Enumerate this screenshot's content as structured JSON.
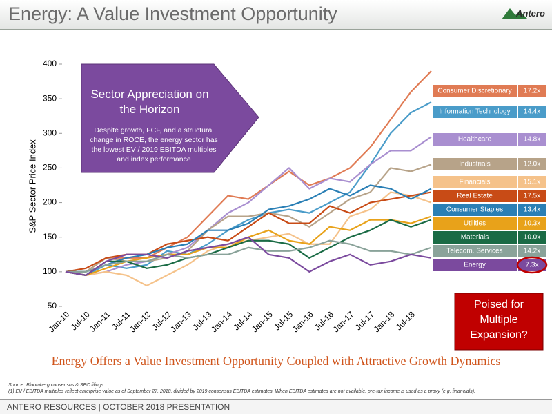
{
  "header": {
    "title": "Energy: A Value Investment Opportunity",
    "logo": "Antero"
  },
  "callout": {
    "title": "Sector Appreciation on the Horizon",
    "body": "Despite growth, FCF, and a structural change in ROCE, the energy sector has the lowest EV / 2019 EBITDA multiples and index performance"
  },
  "question": "Poised for Multiple Expansion?",
  "subtitle": "Energy Offers a Value Investment Opportunity Coupled with Attractive Growth Dynamics",
  "notes": [
    "Source: Bloomberg consensus & SEC filings.",
    "(1)     EV / EBITDA multiples reflect enterprise value as of September 27, 2018, divided by 2019 consensus EBITDA estimates. When EBITDA estimates are not available, pre-tax income is used as a proxy (e.g. financials)."
  ],
  "footer": "ANTERO RESOURCES | OCTOBER 2018 PRESENTATION",
  "chart_data": {
    "type": "line",
    "y_label": "S&P Sector Price Index",
    "categories": [
      "Jan-10",
      "Jul-10",
      "Jan-11",
      "Jul-11",
      "Jan-12",
      "Jul-12",
      "Jan-13",
      "Jul-13",
      "Jan-14",
      "Jul-14",
      "Jan-15",
      "Jul-15",
      "Jan-16",
      "Jul-16",
      "Jan-17",
      "Jul-17",
      "Jan-18",
      "Jul-18",
      null
    ],
    "ylim": [
      50,
      400
    ],
    "yticks": [
      50,
      100,
      150,
      200,
      250,
      300,
      350,
      400
    ],
    "series": [
      {
        "name": "Consumer Discretionary",
        "multiple": "17.2x",
        "color": "#e07b54",
        "values": [
          100,
          100,
          120,
          120,
          120,
          135,
          150,
          180,
          210,
          205,
          225,
          245,
          225,
          235,
          250,
          280,
          320,
          360,
          390
        ]
      },
      {
        "name": "Information Technology",
        "multiple": "14.4x",
        "color": "#4a9cc9",
        "values": [
          100,
          95,
          110,
          105,
          110,
          130,
          125,
          140,
          160,
          175,
          185,
          190,
          185,
          200,
          215,
          255,
          300,
          330,
          345
        ]
      },
      {
        "name": "Healthcare",
        "multiple": "14.8x",
        "color": "#a98fd0",
        "values": [
          100,
          95,
          100,
          110,
          115,
          125,
          135,
          160,
          185,
          200,
          225,
          250,
          220,
          235,
          230,
          255,
          275,
          275,
          295
        ]
      },
      {
        "name": "Industrials",
        "multiple": "12.0x",
        "color": "#b7a389",
        "values": [
          100,
          100,
          120,
          115,
          115,
          120,
          130,
          160,
          180,
          180,
          185,
          180,
          165,
          185,
          205,
          215,
          250,
          245,
          255
        ]
      },
      {
        "name": "Financials",
        "multiple": "15.1x",
        "color": "#f5c28a",
        "values": [
          100,
          95,
          100,
          95,
          80,
          95,
          110,
          130,
          140,
          145,
          150,
          155,
          140,
          140,
          180,
          190,
          215,
          210,
          200
        ]
      },
      {
        "name": "Real Estate",
        "multiple": "17.5x",
        "color": "#c84b16",
        "values": [
          100,
          105,
          120,
          125,
          125,
          140,
          145,
          150,
          145,
          165,
          185,
          170,
          170,
          195,
          185,
          200,
          205,
          210,
          215
        ]
      },
      {
        "name": "Consumer Staples",
        "multiple": "13.4x",
        "color": "#2a7fb5",
        "values": [
          100,
          100,
          110,
          120,
          125,
          135,
          140,
          160,
          160,
          170,
          190,
          195,
          205,
          220,
          210,
          225,
          220,
          205,
          220
        ]
      },
      {
        "name": "Utilities",
        "multiple": "10.3x",
        "color": "#e8a21a",
        "values": [
          100,
          95,
          105,
          115,
          120,
          125,
          125,
          135,
          135,
          150,
          160,
          145,
          140,
          165,
          160,
          175,
          175,
          170,
          180
        ]
      },
      {
        "name": "Materials",
        "multiple": "10.0x",
        "color": "#1a6b45",
        "values": [
          100,
          95,
          115,
          115,
          105,
          110,
          120,
          125,
          135,
          145,
          145,
          140,
          120,
          135,
          150,
          160,
          175,
          165,
          175
        ]
      },
      {
        "name": "Telecom. Services",
        "multiple": "14.2x",
        "color": "#8aa39a",
        "values": [
          100,
          100,
          110,
          115,
          115,
          125,
          120,
          125,
          125,
          135,
          130,
          130,
          135,
          145,
          140,
          130,
          130,
          125,
          135
        ]
      },
      {
        "name": "Energy",
        "multiple": "7.3x",
        "color": "#7b4a9e",
        "values": [
          100,
          95,
          115,
          125,
          125,
          120,
          130,
          135,
          140,
          150,
          125,
          120,
          100,
          115,
          125,
          110,
          115,
          125,
          120
        ]
      }
    ]
  }
}
